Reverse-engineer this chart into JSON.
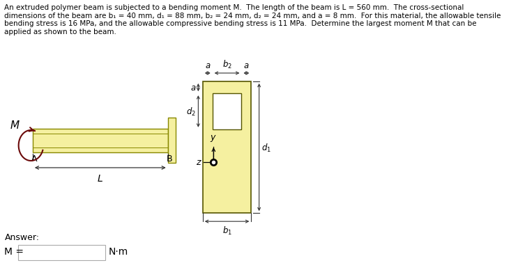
{
  "title_text": "An extruded polymer beam is subjected to a bending moment M.  The length of the beam is L = 560 mm.  The cross-sectional\ndimensions of the beam are b₁ = 40 mm, d₁ = 88 mm, b₂ = 24 mm, d₂ = 24 mm, and a = 8 mm.  For this material, the allowable tensile\nbending stress is 16 MPa, and the allowable compressive bending stress is 11 MPa.  Determine the largest moment M that can be\napplied as shown to the beam.",
  "answer_label": "Answer:",
  "m_label": "M =",
  "nm_label": "N·m",
  "beam_color": "#f5f0a0",
  "beam_outline": "#888800",
  "cross_fill": "#f5f0a0",
  "cross_outline": "#555500",
  "bg_color": "#ffffff",
  "text_color": "#000000",
  "dim_color": "#333333",
  "moment_arrow_color": "#6b0a0a"
}
